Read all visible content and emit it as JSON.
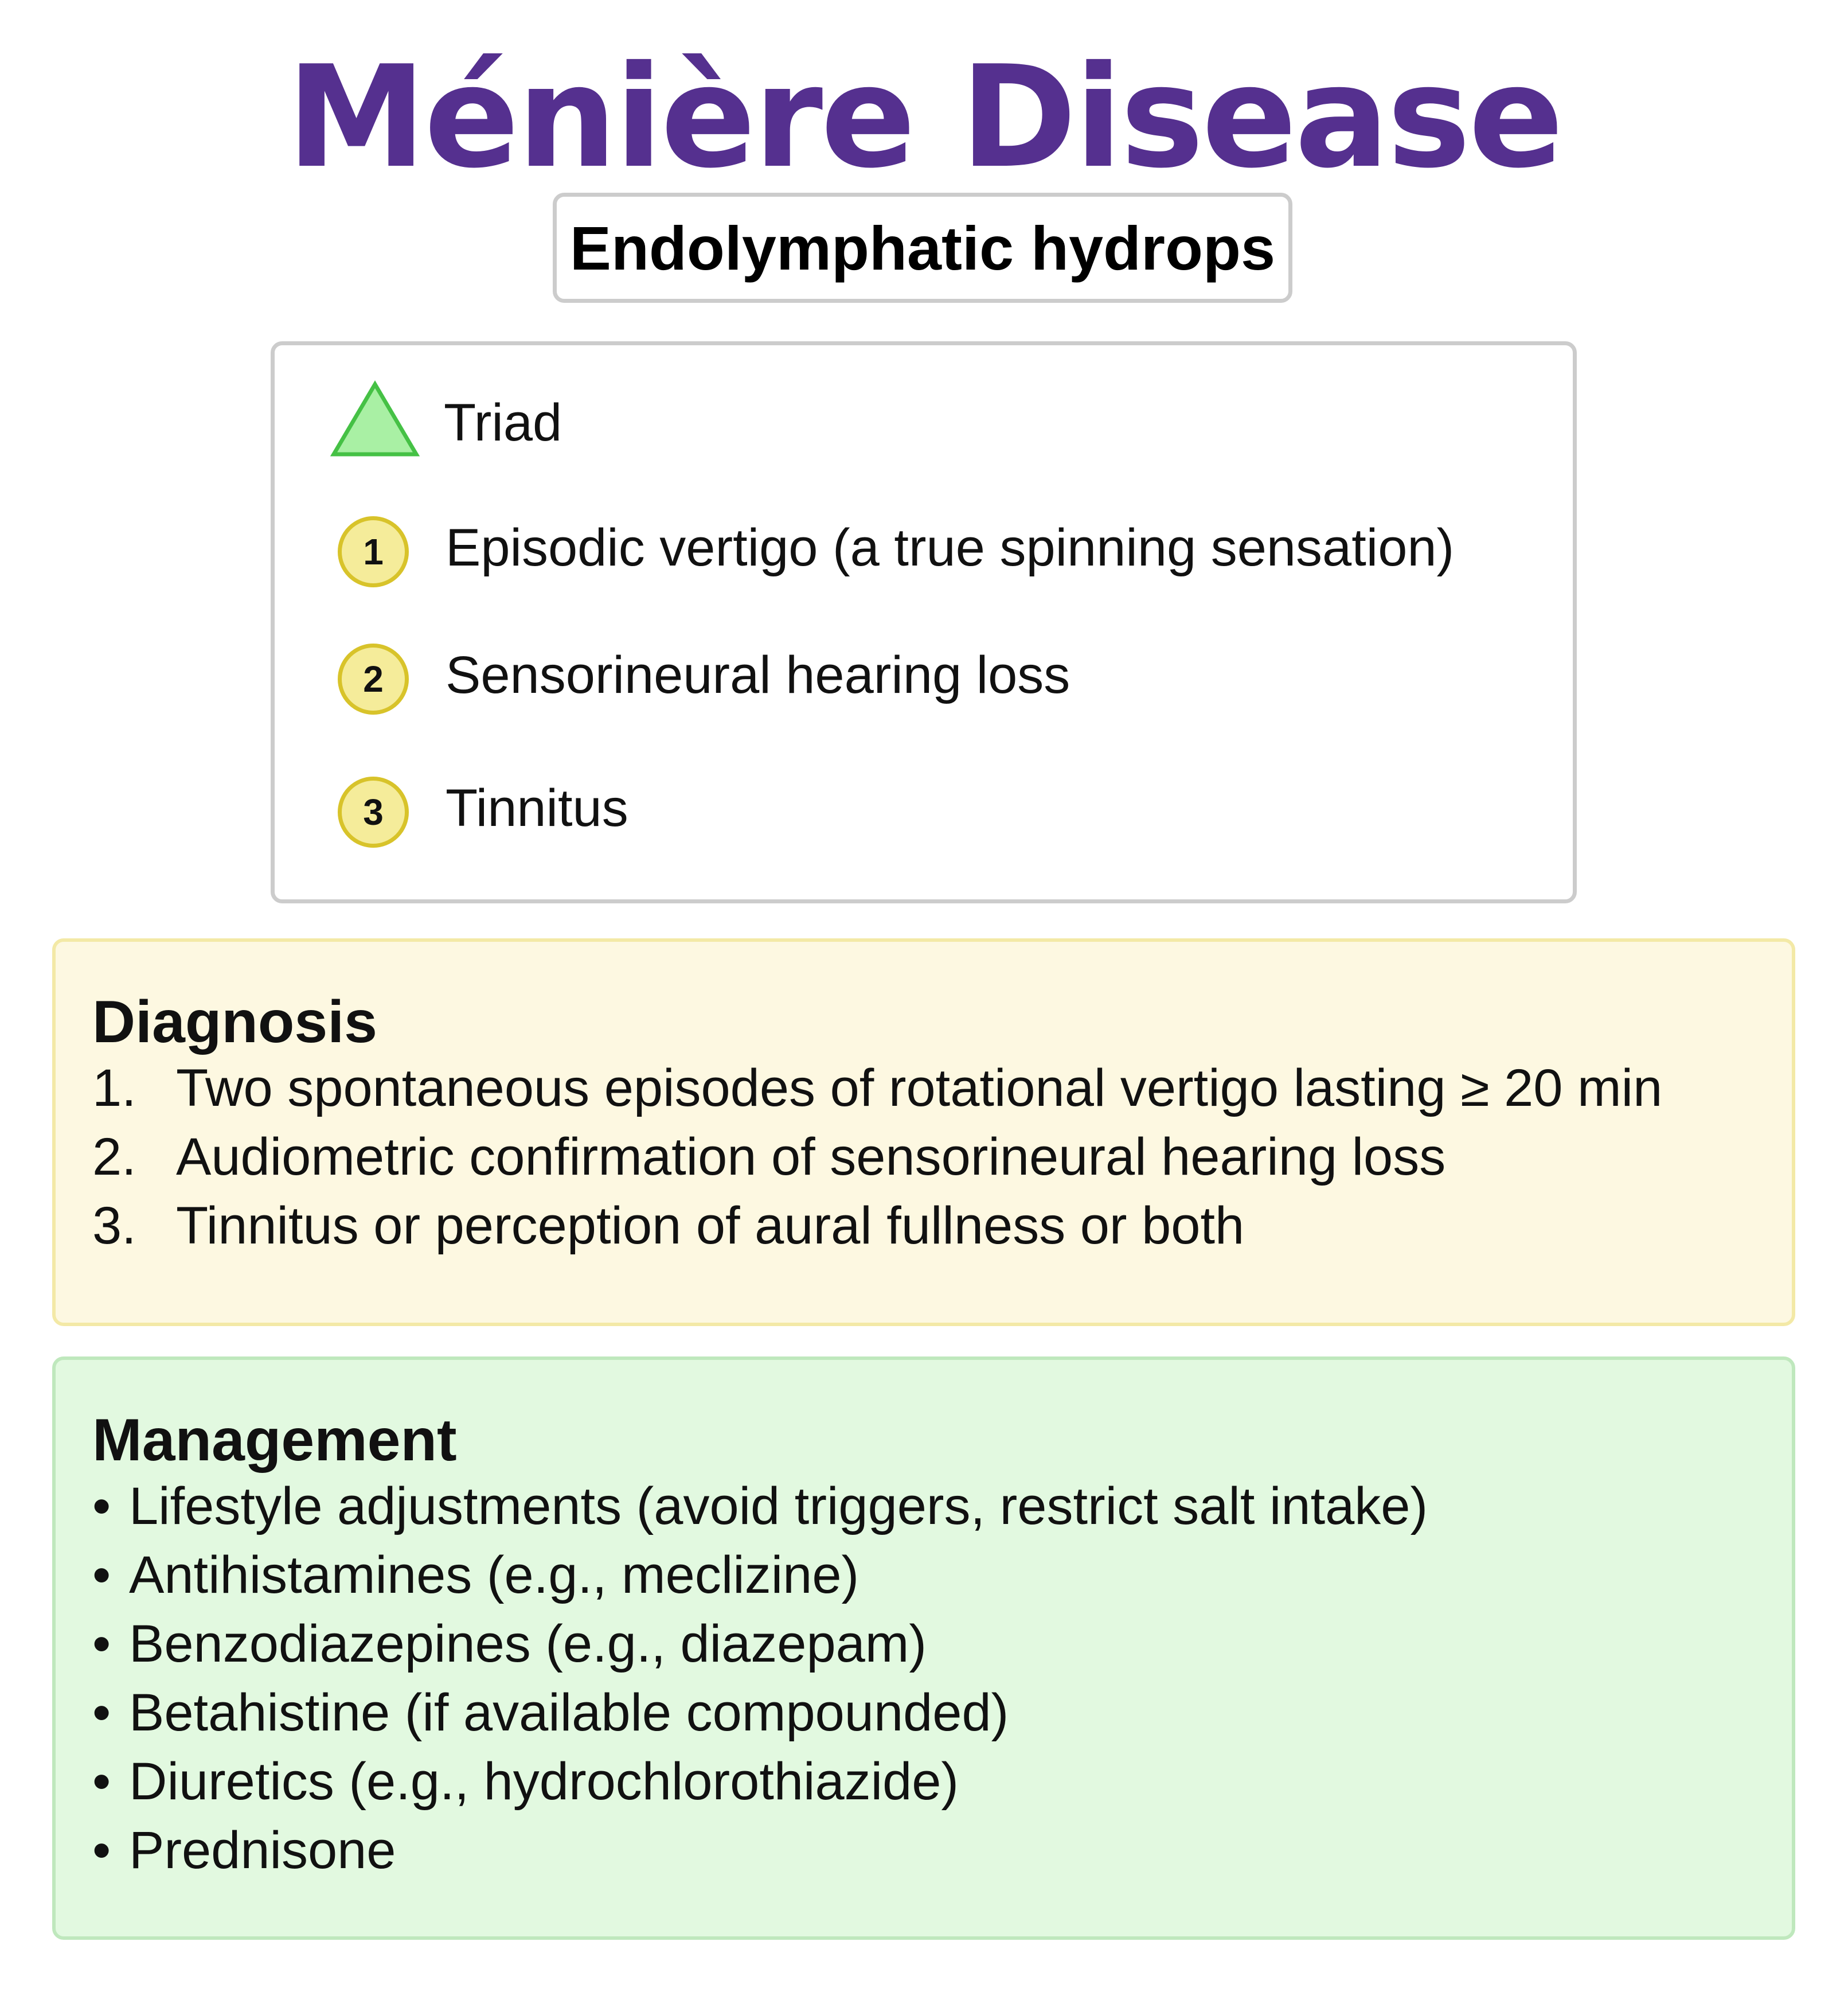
{
  "title": "Ménière Disease",
  "subtitle": "Endolymphatic hydrops",
  "triad": {
    "label": "Triad",
    "icon": "triangle-icon",
    "items": [
      {
        "number": "1",
        "text": "Episodic vertigo (a true spinning sensation)"
      },
      {
        "number": "2",
        "text": "Sensorineural hearing loss"
      },
      {
        "number": "3",
        "text": "Tinnitus"
      }
    ]
  },
  "diagnosis": {
    "heading": "Diagnosis",
    "items": [
      {
        "number": "1.",
        "text": "Two spontaneous episodes of rotational vertigo lasting ≥ 20 min"
      },
      {
        "number": "2.",
        "text": "Audiometric confirmation of sensorineural hearing loss"
      },
      {
        "number": "3.",
        "text": "Tinnitus or perception of aural fullness or both"
      }
    ]
  },
  "management": {
    "heading": "Management",
    "bullet": "•",
    "items": [
      "Lifestyle adjustments (avoid triggers, restrict salt intake)",
      "Antihistamines (e.g., meclizine)",
      "Benzodiazepines (e.g., diazepam)",
      "Betahistine (if available compounded)",
      "Diuretics (e.g., hydrochlorothiazide)",
      "Prednisone"
    ]
  },
  "colors": {
    "title": "#55308f",
    "triangle_fill": "#a9f0a4",
    "triangle_stroke": "#45c145",
    "badge_fill": "#f5ec9a",
    "badge_stroke": "#d8c32a",
    "diagnosis_bg": "#fdf8e1",
    "management_bg": "#e2f9e0"
  }
}
